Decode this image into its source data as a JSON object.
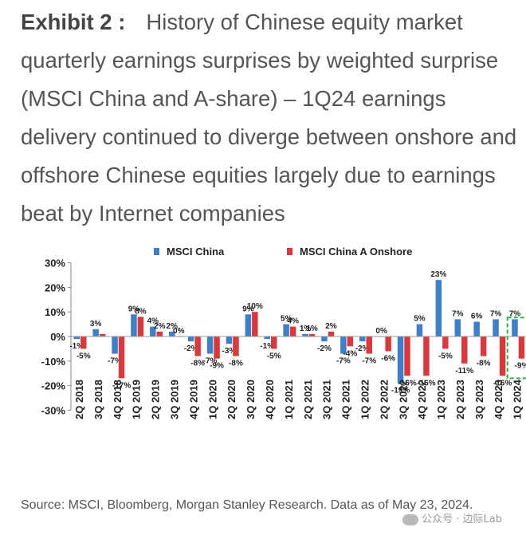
{
  "title": {
    "label": "Exhibit 2 :",
    "text": "History of Chinese equity market quarterly earnings surprises by weighted surprise (MSCI China and A-share) – 1Q24 earnings delivery continued to diverge between onshore and offshore Chinese equities largely due to earnings beat by Internet companies"
  },
  "source": "Source: MSCI, Bloomberg, Morgan Stanley Research. Data as of May 23, 2024.",
  "watermark": "公众号 · 边际Lab",
  "colors": {
    "msci_china": "#3f7fc8",
    "a_onshore": "#d63a3f",
    "highlight_box": "#2db34a"
  },
  "chart_data": {
    "type": "bar",
    "categories": [
      "2Q 2018",
      "3Q 2018",
      "4Q 2018",
      "1Q 2019",
      "2Q 2019",
      "3Q 2019",
      "4Q 2019",
      "1Q 2020",
      "2Q 2020",
      "3Q 2020",
      "4Q 2020",
      "1Q 2021",
      "2Q 2021",
      "3Q 2021",
      "4Q 2021",
      "1Q 2022",
      "2Q 2022",
      "3Q 2022",
      "4Q 2022",
      "1Q 2023",
      "2Q 2023",
      "3Q 2023",
      "4Q 2023",
      "1Q 2024"
    ],
    "series": [
      {
        "name": "MSCI China",
        "values": [
          -1,
          3,
          -7,
          9,
          4,
          2,
          -2,
          -7,
          -3,
          9,
          -1,
          5,
          1,
          -2,
          -7,
          -2,
          0,
          -19,
          5,
          23,
          7,
          6,
          7,
          7
        ]
      },
      {
        "name": "MSCI China A Onshore",
        "values": [
          -5,
          1,
          -17,
          8,
          2,
          0,
          -8,
          -9,
          -8,
          10,
          -5,
          4,
          1,
          2,
          -4,
          -7,
          -6,
          -16,
          -16,
          -5,
          -11,
          -8,
          -16,
          -9
        ]
      }
    ],
    "labels": {
      "MSCI China": [
        "-1%",
        "3%",
        "-7%",
        "9%",
        "4%",
        "2%",
        "-2%",
        "-7%",
        "-3%",
        "9%",
        "-1%",
        "5%",
        "1%",
        "-2%",
        "-7%",
        "-2%",
        "0%",
        "-19%",
        "5%",
        "23%",
        "7%",
        "6%",
        "7%",
        "7%"
      ],
      "MSCI China A Onshore": [
        "-5%",
        "",
        "-17%",
        "8%",
        "2%",
        "0%",
        "-8%",
        "-9%",
        "-8%",
        "10%",
        "-5%",
        "4%",
        "1%",
        "2%",
        "-4%",
        "-7%",
        "-6%",
        "-16%",
        "-16%",
        "-5%",
        "-11%",
        "-8%",
        "-16%",
        "-9%"
      ]
    },
    "yticks": [
      "30%",
      "20%",
      "10%",
      "0%",
      "-10%",
      "-20%",
      "-30%"
    ],
    "ylim": [
      -30,
      30
    ],
    "legend_position": "top",
    "highlight_category": "1Q 2024",
    "grid": false
  }
}
